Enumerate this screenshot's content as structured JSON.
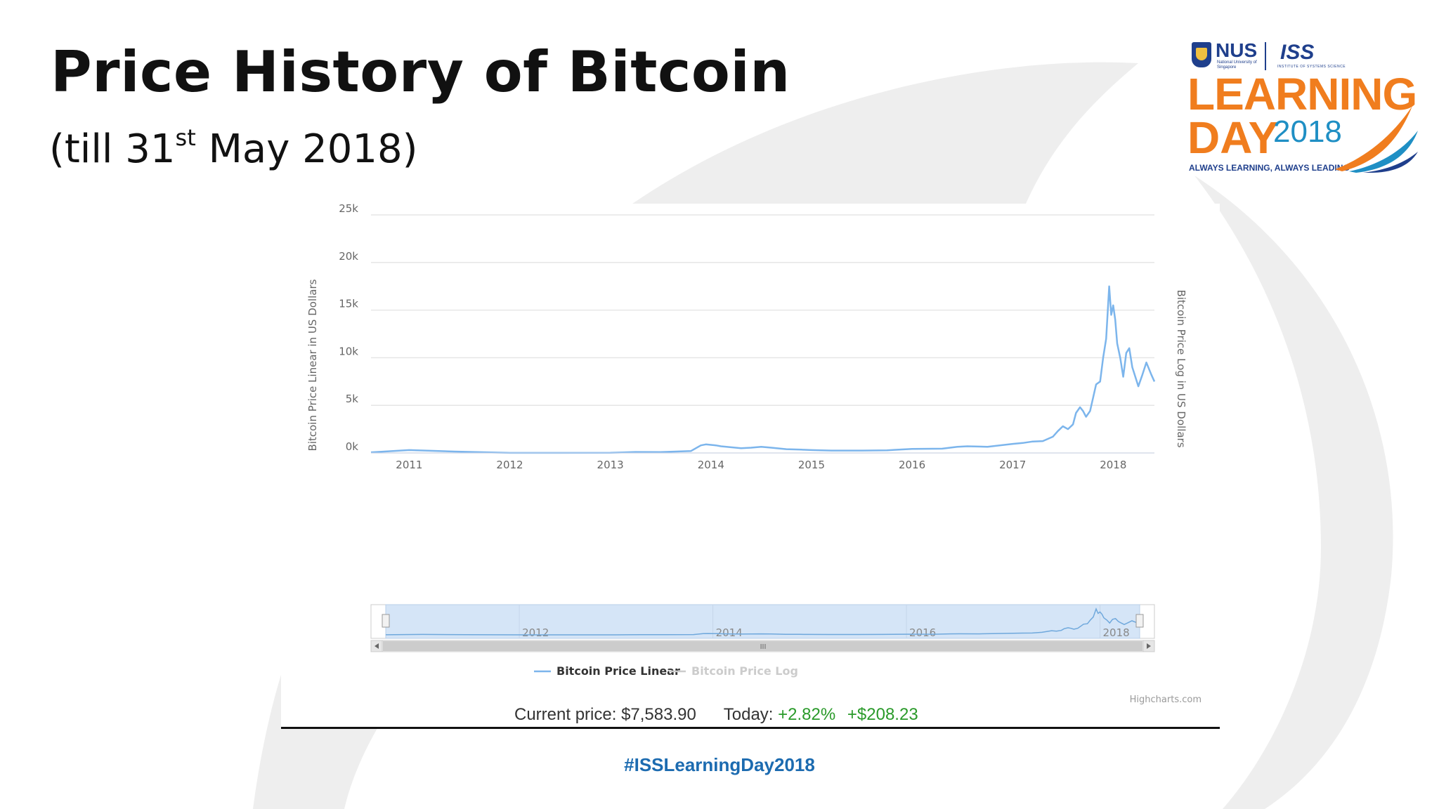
{
  "slide": {
    "title": "Price History of Bitcoin",
    "subtitle_pre": "(till 31",
    "subtitle_sup": "st",
    "subtitle_post": " May 2018)",
    "hashtag": "#ISSLearningDay2018"
  },
  "logo": {
    "nus": "NUS",
    "nus_sub": "National University of Singapore",
    "iss": "ISS",
    "iss_sub": "INSTITUTE OF SYSTEMS SCIENCE",
    "learning": "LEARNING",
    "day": "DAY",
    "year": "2018",
    "tagline": "ALWAYS LEARNING, ALWAYS LEADING",
    "colors": {
      "orange": "#f07d1e",
      "blue": "#1f8fc4",
      "navy": "#1f3f8c"
    }
  },
  "price_info": {
    "current_label": "Current price:",
    "current_value": "$7,583.90",
    "today_label": "Today:",
    "today_pct": "+2.82%",
    "today_abs": "+$208.23"
  },
  "chart_data": {
    "type": "line",
    "y_axis_left_title": "Bitcoin Price Linear in US Dollars",
    "y_axis_right_title": "Bitcoin Price Log in US Dollars",
    "y_ticks": [
      "0k",
      "5k",
      "10k",
      "15k",
      "20k",
      "25k"
    ],
    "y_tick_values": [
      0,
      5000,
      10000,
      15000,
      20000,
      25000
    ],
    "ylim": [
      0,
      25000
    ],
    "x_ticks": [
      "2011",
      "2012",
      "2013",
      "2014",
      "2015",
      "2016",
      "2017",
      "2018"
    ],
    "x_tick_years": [
      2011,
      2012,
      2013,
      2014,
      2015,
      2016,
      2017,
      2018
    ],
    "xlim": [
      2010.62,
      2018.41
    ],
    "navigator_ticks": [
      "2012",
      "2014",
      "2016",
      "2018"
    ],
    "navigator_tick_years": [
      2012,
      2014,
      2016,
      2018
    ],
    "grid": true,
    "legend": [
      "Bitcoin Price Linear",
      "Bitcoin Price Log"
    ],
    "legend_placement": "bottom-center",
    "credit": "Highcharts.com",
    "colors": {
      "linear": "#7cb5ec",
      "log": "#cccccc"
    },
    "series": [
      {
        "name": "Bitcoin Price Linear",
        "x": [
          2010.62,
          2011.0,
          2011.45,
          2012.0,
          2012.5,
          2013.0,
          2013.25,
          2013.5,
          2013.8,
          2013.9,
          2013.95,
          2014.0,
          2014.05,
          2014.1,
          2014.2,
          2014.3,
          2014.4,
          2014.5,
          2014.6,
          2014.75,
          2014.9,
          2015.0,
          2015.2,
          2015.5,
          2015.75,
          2016.0,
          2016.3,
          2016.45,
          2016.55,
          2016.75,
          2017.0,
          2017.1,
          2017.2,
          2017.3,
          2017.4,
          2017.45,
          2017.5,
          2017.55,
          2017.6,
          2017.63,
          2017.67,
          2017.7,
          2017.73,
          2017.77,
          2017.8,
          2017.83,
          2017.87,
          2017.9,
          2017.93,
          2017.96,
          2017.98,
          2018.0,
          2018.02,
          2018.04,
          2018.07,
          2018.1,
          2018.13,
          2018.16,
          2018.19,
          2018.22,
          2018.25,
          2018.29,
          2018.33,
          2018.38,
          2018.41
        ],
        "values": [
          70,
          300,
          150,
          5,
          10,
          15,
          100,
          90,
          200,
          800,
          900,
          850,
          800,
          700,
          600,
          500,
          550,
          650,
          550,
          400,
          350,
          300,
          250,
          250,
          280,
          430,
          450,
          650,
          700,
          650,
          950,
          1050,
          1200,
          1250,
          1700,
          2300,
          2800,
          2500,
          3000,
          4200,
          4800,
          4400,
          3800,
          4400,
          5800,
          7200,
          7500,
          10000,
          12000,
          17500,
          14500,
          15500,
          14000,
          11500,
          10000,
          8000,
          10500,
          11000,
          9000,
          8000,
          7000,
          8200,
          9500,
          8200,
          7500
        ]
      }
    ]
  }
}
